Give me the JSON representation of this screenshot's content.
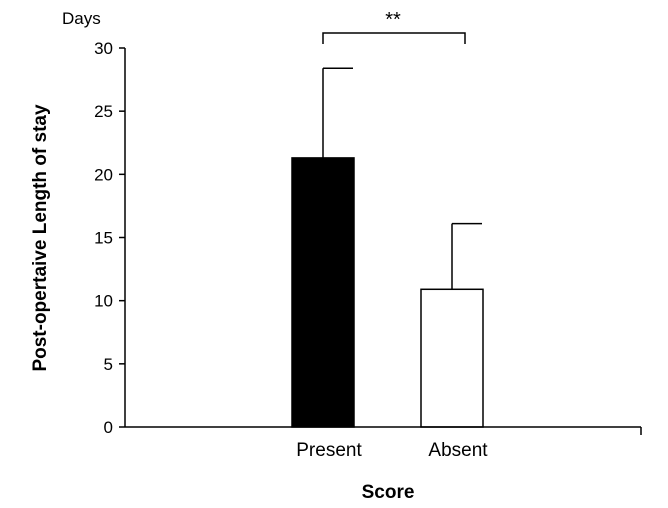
{
  "chart_data": {
    "type": "bar",
    "categories": [
      "Present",
      "Absent"
    ],
    "values": [
      21.3,
      10.9
    ],
    "error_upper": [
      28.4,
      16.1
    ],
    "bar_fill": [
      "#000000",
      "#ffffff"
    ],
    "bar_stroke": "#000000",
    "ylabel": "Post-opertaive Length of stay",
    "yunit": "Days",
    "xlabel": "Score",
    "ylim": [
      0,
      30
    ],
    "yticks": [
      0,
      5,
      10,
      15,
      20,
      25,
      30
    ],
    "grid": false,
    "significance": {
      "between": [
        "Present",
        "Absent"
      ],
      "label": "**"
    }
  }
}
